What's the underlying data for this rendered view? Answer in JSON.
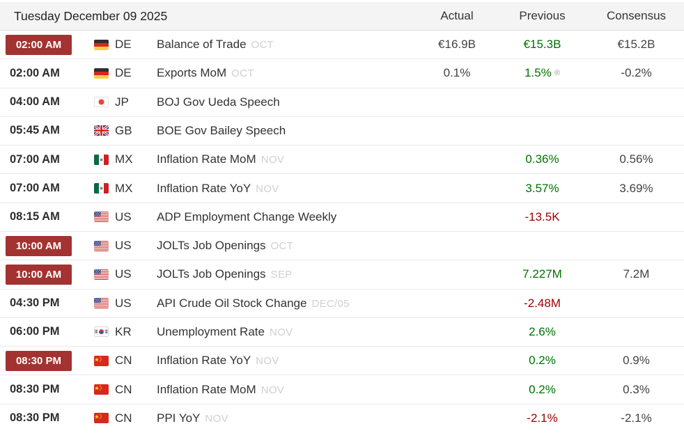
{
  "header": {
    "date_title": "Tuesday December 09 2025",
    "columns": {
      "actual": "Actual",
      "previous": "Previous",
      "consensus": "Consensus"
    }
  },
  "markers": {
    "revised": "®"
  },
  "colors": {
    "time_badge_red": "#a23331",
    "value_green": "#007000",
    "value_red": "#990000",
    "header_background": "#f4f4f4"
  },
  "rows": [
    {
      "time": "02:00 AM",
      "time_highlighted": true,
      "country": "DE",
      "flag_icon": "flag-de-icon",
      "event": "Balance of Trade",
      "period": "OCT",
      "actual": "€16.9B",
      "previous": "€15.3B",
      "previous_state": "positive",
      "revised": false,
      "consensus": "€15.2B"
    },
    {
      "time": "02:00 AM",
      "time_highlighted": false,
      "country": "DE",
      "flag_icon": "flag-de-icon",
      "event": "Exports MoM",
      "period": "OCT",
      "actual": "0.1%",
      "previous": "1.5%",
      "previous_state": "positive",
      "revised": true,
      "consensus": "-0.2%"
    },
    {
      "time": "04:00 AM",
      "time_highlighted": false,
      "country": "JP",
      "flag_icon": "flag-jp-icon",
      "event": "BOJ Gov Ueda Speech",
      "period": "",
      "actual": "",
      "previous": "",
      "previous_state": null,
      "revised": false,
      "consensus": ""
    },
    {
      "time": "05:45 AM",
      "time_highlighted": false,
      "country": "GB",
      "flag_icon": "flag-gb-icon",
      "event": "BOE Gov Bailey Speech",
      "period": "",
      "actual": "",
      "previous": "",
      "previous_state": null,
      "revised": false,
      "consensus": ""
    },
    {
      "time": "07:00 AM",
      "time_highlighted": false,
      "country": "MX",
      "flag_icon": "flag-mx-icon",
      "event": "Inflation Rate MoM",
      "period": "NOV",
      "actual": "",
      "previous": "0.36%",
      "previous_state": "positive",
      "revised": false,
      "consensus": "0.56%"
    },
    {
      "time": "07:00 AM",
      "time_highlighted": false,
      "country": "MX",
      "flag_icon": "flag-mx-icon",
      "event": "Inflation Rate YoY",
      "period": "NOV",
      "actual": "",
      "previous": "3.57%",
      "previous_state": "positive",
      "revised": false,
      "consensus": "3.69%"
    },
    {
      "time": "08:15 AM",
      "time_highlighted": false,
      "country": "US",
      "flag_icon": "flag-us-icon",
      "event": "ADP Employment Change Weekly",
      "period": "",
      "actual": "",
      "previous": "-13.5K",
      "previous_state": "negative",
      "revised": false,
      "consensus": ""
    },
    {
      "time": "10:00 AM",
      "time_highlighted": true,
      "country": "US",
      "flag_icon": "flag-us-icon",
      "event": "JOLTs Job Openings",
      "period": "OCT",
      "actual": "",
      "previous": "",
      "previous_state": null,
      "revised": false,
      "consensus": ""
    },
    {
      "time": "10:00 AM",
      "time_highlighted": true,
      "country": "US",
      "flag_icon": "flag-us-icon",
      "event": "JOLTs Job Openings",
      "period": "SEP",
      "actual": "",
      "previous": "7.227M",
      "previous_state": "positive",
      "revised": false,
      "consensus": "7.2M"
    },
    {
      "time": "04:30 PM",
      "time_highlighted": false,
      "country": "US",
      "flag_icon": "flag-us-icon",
      "event": "API Crude Oil Stock Change",
      "period": "DEC/05",
      "actual": "",
      "previous": "-2.48M",
      "previous_state": "negative",
      "revised": false,
      "consensus": ""
    },
    {
      "time": "06:00 PM",
      "time_highlighted": false,
      "country": "KR",
      "flag_icon": "flag-kr-icon",
      "event": "Unemployment Rate",
      "period": "NOV",
      "actual": "",
      "previous": "2.6%",
      "previous_state": "positive",
      "revised": false,
      "consensus": ""
    },
    {
      "time": "08:30 PM",
      "time_highlighted": true,
      "country": "CN",
      "flag_icon": "flag-cn-icon",
      "event": "Inflation Rate YoY",
      "period": "NOV",
      "actual": "",
      "previous": "0.2%",
      "previous_state": "positive",
      "revised": false,
      "consensus": "0.9%"
    },
    {
      "time": "08:30 PM",
      "time_highlighted": false,
      "country": "CN",
      "flag_icon": "flag-cn-icon",
      "event": "Inflation Rate MoM",
      "period": "NOV",
      "actual": "",
      "previous": "0.2%",
      "previous_state": "positive",
      "revised": false,
      "consensus": "0.3%"
    },
    {
      "time": "08:30 PM",
      "time_highlighted": false,
      "country": "CN",
      "flag_icon": "flag-cn-icon",
      "event": "PPI YoY",
      "period": "NOV",
      "actual": "",
      "previous": "-2.1%",
      "previous_state": "negative",
      "revised": false,
      "consensus": "-2.1%"
    }
  ]
}
